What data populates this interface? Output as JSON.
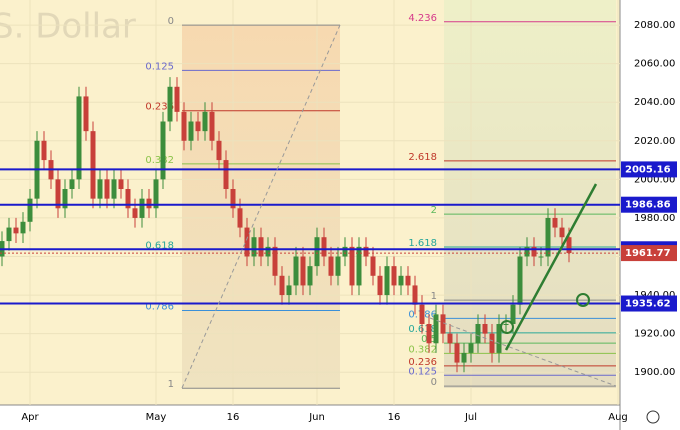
{
  "chart_data": {
    "type": "candlestick",
    "watermark": "S. Dollar",
    "up_color": "#3c8d3c",
    "down_color": "#c8403a",
    "grid": true,
    "ylim": [
      1883,
      2093
    ],
    "yticks": [
      {
        "value": 1900,
        "label": "1900.00"
      },
      {
        "value": 1920,
        "label": "1920.00"
      },
      {
        "value": 1940,
        "label": "1940.00"
      },
      {
        "value": 1960,
        "label": "1960.00"
      },
      {
        "value": 1980,
        "label": "1980.00"
      },
      {
        "value": 2000,
        "label": "2000.00"
      },
      {
        "value": 2020,
        "label": "2020.00"
      },
      {
        "value": 2040,
        "label": "2040.00"
      },
      {
        "value": 2060,
        "label": "2060.00"
      },
      {
        "value": 2080,
        "label": "2080.00"
      }
    ],
    "xticks": [
      {
        "value": 4,
        "label": "Apr"
      },
      {
        "value": 22,
        "label": "May"
      },
      {
        "value": 33,
        "label": "16"
      },
      {
        "value": 45,
        "label": "Jun"
      },
      {
        "value": 56,
        "label": "16"
      },
      {
        "value": 67,
        "label": "Jul"
      },
      {
        "value": 88,
        "label": "Aug"
      }
    ],
    "open": [
      1960,
      1968,
      1975,
      1972,
      1978,
      1990,
      2020,
      2010,
      2000,
      1985,
      1995,
      2000,
      2043,
      2025,
      1990,
      2000,
      1990,
      2000,
      1995,
      1985,
      1980,
      1990,
      1985,
      2000,
      2030,
      2048,
      2035,
      2020,
      2030,
      2025,
      2035,
      2020,
      2010,
      1995,
      1985,
      1975,
      1960,
      1970,
      1960,
      1965,
      1950,
      1940,
      1945,
      1960,
      1945,
      1955,
      1970,
      1960,
      1950,
      1960,
      1965,
      1945,
      1965,
      1960,
      1950,
      1940,
      1955,
      1945,
      1950,
      1945,
      1935,
      1925,
      1915,
      1930,
      1920,
      1915,
      1905,
      1910,
      1915,
      1925,
      1920,
      1910,
      1925,
      1925,
      1935,
      1960,
      1965,
      1960,
      1960,
      1980,
      1975,
      1970
    ],
    "high": [
      1973,
      1980,
      1980,
      1983,
      1995,
      2025,
      2025,
      2015,
      2005,
      2000,
      2005,
      2048,
      2048,
      2030,
      2005,
      2005,
      2005,
      2005,
      2000,
      1990,
      1995,
      1995,
      2005,
      2035,
      2053,
      2053,
      2040,
      2035,
      2035,
      2040,
      2040,
      2025,
      2015,
      2000,
      1990,
      1980,
      1975,
      1975,
      1970,
      1970,
      1955,
      1950,
      1965,
      1965,
      1960,
      1975,
      1975,
      1965,
      1965,
      1970,
      1970,
      1970,
      1970,
      1965,
      1955,
      1960,
      1960,
      1955,
      1955,
      1950,
      1940,
      1930,
      1935,
      1935,
      1925,
      1920,
      1915,
      1920,
      1930,
      1930,
      1925,
      1930,
      1930,
      1940,
      1965,
      1970,
      1970,
      1965,
      1985,
      1985,
      1980,
      1975
    ],
    "low": [
      1955,
      1963,
      1967,
      1967,
      1973,
      1985,
      2005,
      1995,
      1980,
      1980,
      1990,
      1995,
      2020,
      1985,
      1985,
      1985,
      1985,
      1990,
      1980,
      1975,
      1975,
      1980,
      1980,
      1995,
      2025,
      2030,
      2015,
      2015,
      2020,
      2020,
      2015,
      2005,
      1990,
      1980,
      1970,
      1955,
      1955,
      1955,
      1955,
      1945,
      1935,
      1935,
      1940,
      1940,
      1940,
      1950,
      1955,
      1945,
      1945,
      1955,
      1940,
      1940,
      1955,
      1945,
      1935,
      1935,
      1940,
      1940,
      1940,
      1930,
      1920,
      1910,
      1910,
      1915,
      1910,
      1900,
      1900,
      1905,
      1910,
      1915,
      1905,
      1905,
      1920,
      1920,
      1930,
      1955,
      1955,
      1955,
      1955,
      1970,
      1965,
      1957
    ],
    "close": [
      1968,
      1975,
      1972,
      1978,
      1990,
      2020,
      2010,
      2000,
      1985,
      1995,
      2000,
      2043,
      2025,
      1990,
      2000,
      1990,
      2000,
      1995,
      1985,
      1980,
      1990,
      1985,
      2000,
      2030,
      2048,
      2035,
      2020,
      2030,
      2025,
      2035,
      2020,
      2010,
      1995,
      1985,
      1975,
      1960,
      1970,
      1960,
      1965,
      1950,
      1940,
      1945,
      1960,
      1945,
      1955,
      1970,
      1960,
      1950,
      1960,
      1965,
      1945,
      1965,
      1960,
      1950,
      1940,
      1955,
      1945,
      1950,
      1945,
      1935,
      1925,
      1915,
      1930,
      1920,
      1915,
      1905,
      1910,
      1915,
      1925,
      1920,
      1910,
      1925,
      1925,
      1935,
      1960,
      1965,
      1960,
      1960,
      1980,
      1975,
      1970,
      1961.77
    ],
    "levels": [
      {
        "value": 2005.16,
        "color": "#1a1acc"
      },
      {
        "value": 1986.86,
        "color": "#1a1acc"
      },
      {
        "value": 1963.75,
        "color": "#1a1acc"
      },
      {
        "value": 1935.62,
        "color": "#1a1acc"
      }
    ],
    "fib_left": [
      {
        "label": "0",
        "value": 2080,
        "color": "#888888"
      },
      {
        "label": "0.125",
        "value": 2056.5,
        "color": "#6a6acc"
      },
      {
        "label": "0.236",
        "value": 2035.6,
        "color": "#c0392b"
      },
      {
        "label": "0.382",
        "value": 2008,
        "color": "#8bc34a"
      },
      {
        "label": "0.618",
        "value": 1963.6,
        "color": "#26a69a"
      },
      {
        "label": "0.786",
        "value": 1932,
        "color": "#3a8fd8"
      },
      {
        "label": "1",
        "value": 1891.7,
        "color": "#888888"
      }
    ],
    "fib_right": [
      {
        "label": "4.236",
        "value": 2081.7,
        "color": "#d63a8a"
      },
      {
        "label": "2.618",
        "value": 2009.6,
        "color": "#c0392b"
      },
      {
        "label": "2",
        "value": 1982,
        "color": "#5cb85c"
      },
      {
        "label": "1.618",
        "value": 1964.9,
        "color": "#26a69a"
      },
      {
        "label": "1",
        "value": 1937.4,
        "color": "#888888"
      },
      {
        "label": "0.786",
        "value": 1927.9,
        "color": "#3a8fd8"
      },
      {
        "label": "0.618",
        "value": 1920.4,
        "color": "#26a69a"
      },
      {
        "label": "0.5",
        "value": 1915.1,
        "color": "#5cb85c"
      },
      {
        "label": "0.382",
        "value": 1909.8,
        "color": "#8bc34a"
      },
      {
        "label": "0.236",
        "value": 1903.3,
        "color": "#c0392b"
      },
      {
        "label": "0.125",
        "value": 1898.4,
        "color": "#6a6acc"
      },
      {
        "label": "0",
        "value": 1892.8,
        "color": "#888888"
      }
    ]
  }
}
